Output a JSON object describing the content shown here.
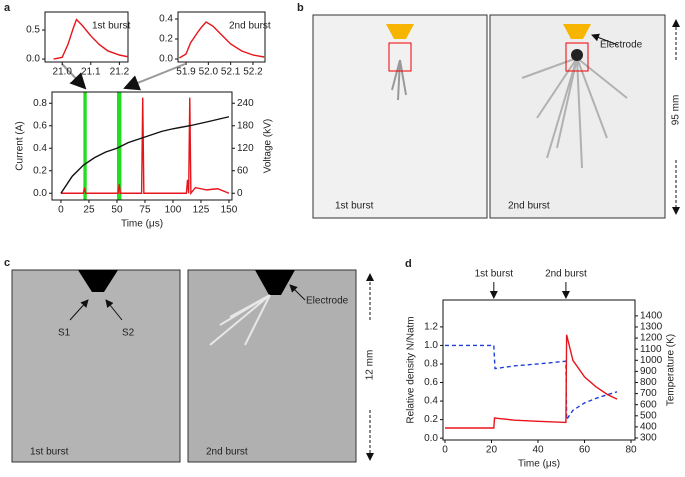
{
  "chart_data": [
    {
      "type": "line",
      "panel": "a",
      "label": "1st burst",
      "xlim": [
        20.94,
        21.23
      ],
      "xticks": [
        {
          "value": 21,
          "label": "21.0"
        },
        21.1,
        21.2
      ],
      "ylim": [
        -0.05,
        0.81
      ],
      "yticks": [
        {
          "value": 0,
          "label": "0.0"
        },
        0.5
      ],
      "series": [
        {
          "color": "#e8141b",
          "x": [
            20.97,
            21.0,
            21.02,
            21.04,
            21.05,
            21.07,
            21.1,
            21.13,
            21.16,
            21.2,
            21.23
          ],
          "values": [
            0,
            0.03,
            0.25,
            0.55,
            0.68,
            0.58,
            0.4,
            0.25,
            0.14,
            0.07,
            0.04
          ]
        }
      ]
    },
    {
      "type": "line",
      "label": "2nd burst",
      "xlim": [
        51.864,
        52.254
      ],
      "xticks": [
        51.9,
        {
          "value": 52,
          "label": "52.0"
        },
        52.1,
        52.2
      ],
      "ylim": [
        -0.03,
        0.47
      ],
      "yticks": [
        {
          "value": 0,
          "label": "0.0"
        },
        {
          "value": 0.2,
          "label": "0.2"
        },
        {
          "value": 0.4,
          "label": "0.4"
        }
      ],
      "series": [
        {
          "color": "#e8141b",
          "x": [
            51.87,
            51.9,
            51.92,
            51.95,
            51.97,
            51.99,
            52.02,
            52.06,
            52.1,
            52.15,
            52.2,
            52.25
          ],
          "values": [
            0.01,
            0.05,
            0.16,
            0.26,
            0.32,
            0.37,
            0.33,
            0.24,
            0.15,
            0.08,
            0.04,
            0.02
          ]
        }
      ]
    },
    {
      "type": "line",
      "xlabel": "Time (μs)",
      "ylabel": "Current (A)",
      "y2label": "Voltage (kV)",
      "xlim": [
        -8,
        152.7
      ],
      "xticks": [
        0,
        25,
        50,
        75,
        100,
        125,
        150
      ],
      "ylim": [
        -0.06,
        0.9
      ],
      "yticks": [
        {
          "value": 0,
          "label": "0.0"
        },
        {
          "value": 0.2,
          "label": "0.2"
        },
        {
          "value": 0.4,
          "label": "0.4"
        },
        {
          "value": 0.6,
          "label": "0.6"
        },
        {
          "value": 0.8,
          "label": "0.8"
        }
      ],
      "y2lim": [
        -18,
        270
      ],
      "y2ticks": [
        0,
        60,
        120,
        180,
        240
      ],
      "highlights": [
        [
          20,
          23
        ],
        [
          50,
          54
        ]
      ],
      "series": [
        {
          "color": "#e8141b",
          "x": [
            0,
            20,
            21,
            22,
            51,
            52,
            53,
            72,
            73,
            74,
            112,
            113,
            114,
            115,
            116,
            120,
            130,
            140,
            150
          ],
          "values": [
            0,
            0,
            0.05,
            0,
            0,
            0.08,
            0,
            0,
            0.85,
            0,
            0,
            0.12,
            0,
            0.85,
            0,
            0.05,
            0.03,
            0.04,
            0
          ]
        },
        {
          "color": "#111111",
          "axis": "y2",
          "x": [
            0,
            10,
            20,
            30,
            40,
            50,
            60,
            75,
            90,
            100,
            115,
            130,
            150
          ],
          "values": [
            0,
            45,
            75,
            95,
            110,
            120,
            135,
            150,
            165,
            172,
            180,
            190,
            204
          ]
        }
      ]
    },
    {
      "type": "line",
      "panel": "d",
      "xlabel": "Time (μs)",
      "ylabel": "Relative density N/Natm",
      "y2label": "Temperature (K)",
      "xlim": [
        -0.85,
        81.7
      ],
      "xticks": [
        0,
        20,
        40,
        60,
        80
      ],
      "ylim": [
        -0.02,
        1.49
      ],
      "yticks": [
        {
          "value": 0,
          "label": "0.0"
        },
        {
          "value": 0.2,
          "label": "0.2"
        },
        {
          "value": 0.4,
          "label": "0.4"
        },
        {
          "value": 0.6,
          "label": "0.6"
        },
        {
          "value": 0.8,
          "label": "0.8"
        },
        {
          "value": 1,
          "label": "1.0"
        },
        {
          "value": 1.2,
          "label": "1.2"
        }
      ],
      "y2lim": [
        282,
        1543
      ],
      "y2ticks": [
        300,
        400,
        500,
        600,
        700,
        800,
        900,
        1000,
        1100,
        1200,
        1300,
        1400
      ],
      "annotations": [
        {
          "text": "1st burst",
          "x": 21
        },
        {
          "text": "2nd burst",
          "x": 52
        }
      ],
      "series": [
        {
          "color": "#1f3fd6",
          "linestyle": "dashed",
          "x": [
            0,
            21,
            21.5,
            30,
            40,
            52,
            52.3,
            55,
            60,
            65,
            70,
            74
          ],
          "values": [
            1,
            1,
            0.75,
            0.78,
            0.8,
            0.83,
            0.2,
            0.3,
            0.38,
            0.43,
            0.47,
            0.5
          ]
        },
        {
          "color": "#e8141b",
          "axis": "y2",
          "x": [
            0,
            21,
            21.3,
            30,
            40,
            52,
            52.3,
            55,
            60,
            65,
            70,
            74
          ],
          "values": [
            390,
            390,
            480,
            460,
            450,
            440,
            1230,
            1000,
            850,
            760,
            690,
            650
          ]
        }
      ]
    }
  ],
  "images": {
    "b": {
      "label": "b",
      "captions": [
        "1st burst",
        "2nd burst"
      ],
      "electrode": "Electrode",
      "scale": "95 mm"
    },
    "c": {
      "label": "c",
      "captions": [
        "1st burst",
        "2nd burst"
      ],
      "markers": [
        "S1",
        "S2"
      ],
      "electrode": "Electrode",
      "scale": "12 mm"
    }
  }
}
